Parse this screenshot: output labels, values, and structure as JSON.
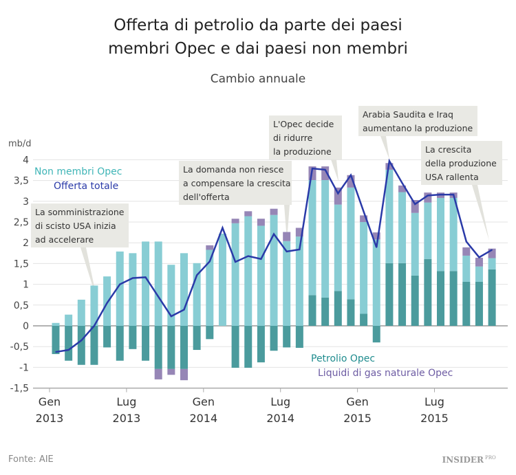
{
  "chart_data": {
    "type": "bar",
    "title": "Offerta di petrolio da parte dei paesi membri Opec e dai paesi non membri",
    "title_lines": [
      "Offerta di petrolio da parte dei paesi",
      "membri Opec e dai paesi non membri"
    ],
    "subtitle": "Cambio annuale",
    "ylabel": "mb/d",
    "ylim": [
      -1.5,
      4
    ],
    "yticks": [
      "4",
      "3,5",
      "3",
      "2,5",
      "2",
      "1,5",
      "1",
      "0,5",
      "0",
      "-0,5",
      "-1",
      "-1,5"
    ],
    "ytick_values": [
      4,
      3.5,
      3,
      2.5,
      2,
      1.5,
      1,
      0.5,
      0,
      -0.5,
      -1,
      -1.5
    ],
    "grid": true,
    "stacked": true,
    "categories": [
      "Gen 2013",
      "Feb 2013",
      "Mar 2013",
      "Apr 2013",
      "Mag 2013",
      "Giu 2013",
      "Lug 2013",
      "Ago 2013",
      "Set 2013",
      "Ott 2013",
      "Nov 2013",
      "Dic 2013",
      "Gen 2014",
      "Feb 2014",
      "Mar 2014",
      "Apr 2014",
      "Mag 2014",
      "Giu 2014",
      "Lug 2014",
      "Ago 2014",
      "Set 2014",
      "Ott 2014",
      "Nov 2014",
      "Dic 2014",
      "Gen 2015",
      "Feb 2015",
      "Mar 2015",
      "Apr 2015",
      "Mag 2015",
      "Giu 2015",
      "Lug 2015",
      "Ago 2015",
      "Set 2015",
      "Ott 2015",
      "Nov 2015"
    ],
    "xticks": [
      {
        "month": "Gen",
        "year": "2013",
        "index": 0
      },
      {
        "month": "Lug",
        "year": "2013",
        "index": 6
      },
      {
        "month": "Gen",
        "year": "2014",
        "index": 12
      },
      {
        "month": "Lug",
        "year": "2014",
        "index": 18
      },
      {
        "month": "Gen",
        "year": "2015",
        "index": 24
      },
      {
        "month": "Lug",
        "year": "2015",
        "index": 30
      }
    ],
    "series": [
      {
        "name": "Petrolio Opec",
        "kind": "bar",
        "color": "#4b9b9d",
        "values": [
          -0.68,
          -0.84,
          -0.94,
          -0.94,
          -0.52,
          -0.84,
          -0.56,
          -0.84,
          -1.04,
          -1.04,
          -1.04,
          -0.58,
          -0.32,
          0,
          -1.01,
          -1.01,
          -0.88,
          -0.6,
          -0.52,
          -0.53,
          0.74,
          0.68,
          0.84,
          0.64,
          0.29,
          -0.4,
          1.51,
          1.51,
          1.21,
          1.61,
          1.32,
          1.32,
          1.06,
          1.06,
          1.36
        ]
      },
      {
        "name": "Non membri Opec",
        "kind": "bar",
        "color": "#88cdd4",
        "values": [
          0.07,
          0.27,
          0.63,
          0.97,
          1.19,
          1.79,
          1.75,
          2.03,
          2.03,
          1.47,
          1.75,
          1.51,
          1.83,
          2.22,
          2.47,
          2.64,
          2.41,
          2.67,
          2.04,
          2.15,
          2.77,
          2.83,
          2.08,
          2.69,
          2.21,
          2.08,
          2.25,
          1.71,
          1.51,
          1.36,
          1.76,
          1.76,
          0.63,
          0.37,
          0.27
        ]
      },
      {
        "name": "Liquidi di gas naturale Opec",
        "kind": "bar",
        "color": "#9686b6",
        "values": [
          0,
          0,
          0,
          0,
          0,
          0,
          0,
          0,
          -0.25,
          -0.14,
          -0.27,
          0,
          0.11,
          0,
          0.11,
          0.12,
          0.17,
          0.15,
          0.22,
          0.21,
          0.33,
          0.33,
          0.41,
          0.3,
          0.16,
          0.17,
          0.16,
          0.16,
          0.31,
          0.24,
          0.13,
          0.13,
          0.2,
          0.21,
          0.23
        ]
      },
      {
        "name": "Offerta totale",
        "kind": "line",
        "color": "#2a3aa8",
        "values": [
          -0.63,
          -0.58,
          -0.35,
          0.0,
          0.55,
          1.0,
          1.15,
          1.17,
          0.7,
          0.23,
          0.39,
          1.22,
          1.55,
          2.36,
          1.54,
          1.68,
          1.61,
          2.21,
          1.79,
          1.84,
          3.79,
          3.76,
          3.19,
          3.63,
          2.75,
          1.89,
          3.97,
          3.44,
          2.93,
          3.14,
          3.16,
          3.16,
          2.03,
          1.65,
          1.83
        ]
      }
    ],
    "annotations": [
      {
        "lines": [
          "La somministrazione",
          "di scisto USA inizia",
          "ad accelerare"
        ],
        "index": 3
      },
      {
        "lines": [
          "La domanda non riesce",
          "a compensare la crescita",
          "dell'offerta"
        ],
        "index": 18
      },
      {
        "lines": [
          "L'Opec decide",
          "di ridurre",
          "la produzione"
        ],
        "index": 22
      },
      {
        "lines": [
          "Arabia Saudita e Iraq",
          "aumentano la produzione"
        ],
        "index": 26
      },
      {
        "lines": [
          "La crescita",
          "della produzione",
          "USA rallenta"
        ],
        "index": 34
      }
    ]
  },
  "footer": {
    "source": "Fonte: AIE",
    "logo": "INSIDER",
    "logo_sup": "PRO"
  },
  "colors": {
    "grid": "#e3e3e3",
    "axis": "#aaaaaa",
    "annotation_bg": "#e9e9e4",
    "text": "#333333"
  }
}
